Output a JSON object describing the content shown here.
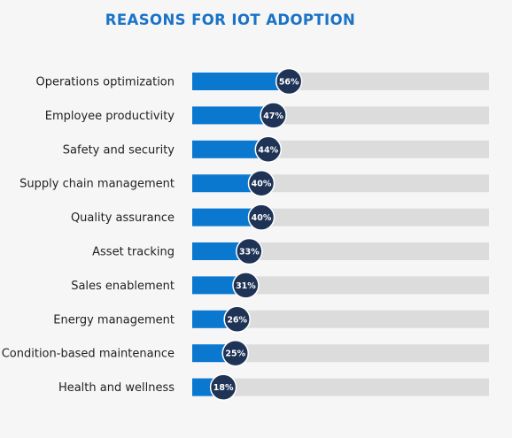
{
  "colors": {
    "background": "#f6f6f6",
    "title": "#1a73c7",
    "bar_fill": "#0b78d0",
    "bar_track": "#dcdcdc",
    "bubble": "#1f3356"
  },
  "chart_data": {
    "type": "bar",
    "orientation": "horizontal",
    "title": "REASONS FOR IOT ADOPTION",
    "xlabel": "",
    "ylabel": "",
    "xlim": [
      0,
      100
    ],
    "grid": false,
    "categories": [
      "Operations optimization",
      "Employee productivity",
      "Safety and security",
      "Supply chain management",
      "Quality assurance",
      "Asset tracking",
      "Sales enablement",
      "Energy management",
      "Condition-based maintenance",
      "Health and wellness"
    ],
    "values": [
      56,
      47,
      44,
      40,
      40,
      33,
      31,
      26,
      25,
      18
    ],
    "value_labels": [
      "56%",
      "47%",
      "44%",
      "40%",
      "40%",
      "33%",
      "31%",
      "26%",
      "25%",
      "18%"
    ]
  }
}
